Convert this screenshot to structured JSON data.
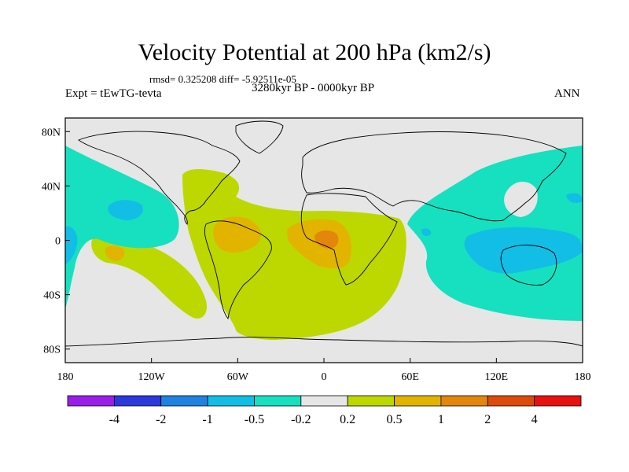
{
  "header": {
    "title": "Velocity Potential at 200 hPa (km2/s)",
    "stats": "rmsd= 0.325208 diff= -5.92511e-05",
    "left_label": "Expt = tEwTG-tevta",
    "center_label": "3280kyr BP - 0000kyr BP",
    "right_label": "ANN"
  },
  "chart_data": {
    "type": "heatmap",
    "title": "Velocity Potential at 200 hPa (km2/s)",
    "xlabel": "",
    "ylabel": "",
    "xlim": [
      -180,
      180
    ],
    "ylim": [
      -90,
      90
    ],
    "x_ticks": [
      {
        "value": -180,
        "label": "180"
      },
      {
        "value": -120,
        "label": "120W"
      },
      {
        "value": -60,
        "label": "60W"
      },
      {
        "value": 0,
        "label": "0"
      },
      {
        "value": 60,
        "label": "60E"
      },
      {
        "value": 120,
        "label": "120E"
      },
      {
        "value": 180,
        "label": "180"
      }
    ],
    "y_ticks": [
      {
        "value": 80,
        "label": "80N"
      },
      {
        "value": 40,
        "label": "40N"
      },
      {
        "value": 0,
        "label": "0"
      },
      {
        "value": -40,
        "label": "40S"
      },
      {
        "value": -80,
        "label": "80S"
      }
    ],
    "colorbar": {
      "levels": [
        -4,
        -2,
        -1,
        -0.5,
        -0.2,
        0.2,
        0.5,
        1,
        2,
        4
      ],
      "labels": [
        "-4",
        "-2",
        "-1",
        "-0.5",
        "-0.2",
        "0.2",
        "0.5",
        "1",
        "2",
        "4"
      ],
      "colors": [
        "#9a1ee8",
        "#2c37dc",
        "#1e82e0",
        "#12bde6",
        "#16e0c0",
        "#e6e6e6",
        "#bcd800",
        "#e2b400",
        "#e3860b",
        "#dd4a0b",
        "#e81010"
      ]
    },
    "regions": [
      {
        "name": "positive-basin-americas-atlantic-africa",
        "value_range": [
          0.2,
          0.5
        ]
      },
      {
        "name": "positive-amazon",
        "value_range": [
          0.5,
          1
        ]
      },
      {
        "name": "positive-central-africa",
        "value_range": [
          0.5,
          1
        ]
      },
      {
        "name": "positive-central-africa-core",
        "value_range": [
          1,
          2
        ]
      },
      {
        "name": "positive-south-pacific-west",
        "value_range": [
          0.2,
          0.5
        ]
      },
      {
        "name": "positive-south-pacific-core",
        "value_range": [
          0.5,
          1
        ]
      },
      {
        "name": "negative-north-pacific",
        "value_range": [
          -0.5,
          -0.2
        ]
      },
      {
        "name": "negative-north-pacific-core",
        "value_range": [
          -1,
          -0.5
        ]
      },
      {
        "name": "negative-indo-pacific",
        "value_range": [
          -0.5,
          -0.2
        ]
      },
      {
        "name": "negative-maritime-continent",
        "value_range": [
          -1,
          -0.5
        ]
      },
      {
        "name": "negative-dateline-edge",
        "value_range": [
          -1,
          -0.5
        ]
      }
    ]
  }
}
